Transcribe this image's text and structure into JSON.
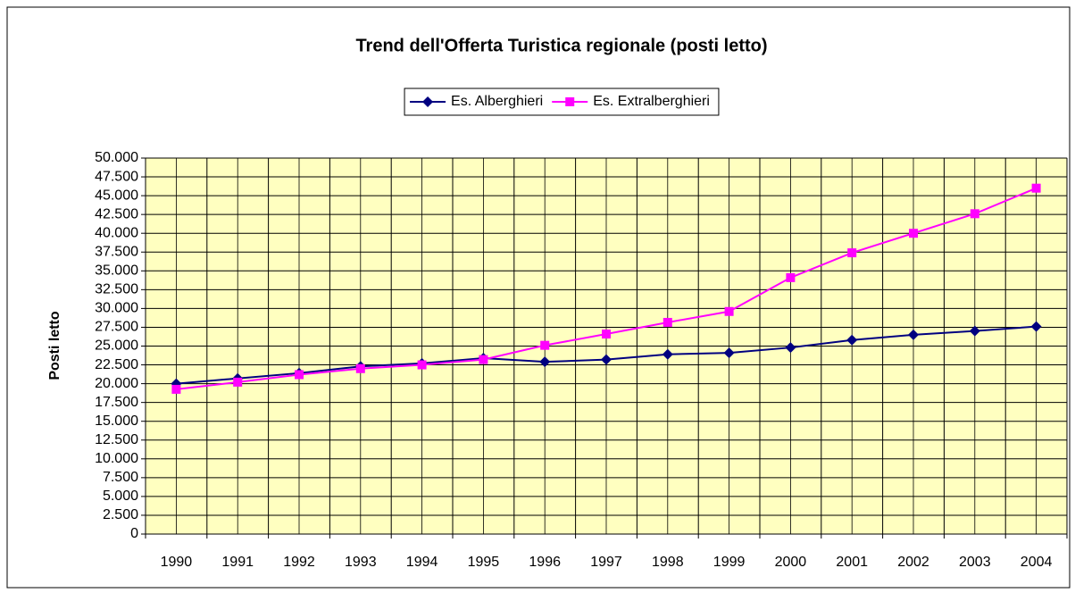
{
  "chart_data": {
    "type": "line",
    "title": "Trend dell'Offerta Turistica regionale (posti letto)",
    "y_label": "Posti letto",
    "categories": [
      "1990",
      "1991",
      "1992",
      "1993",
      "1994",
      "1995",
      "1996",
      "1997",
      "1998",
      "1999",
      "2000",
      "2001",
      "2002",
      "2003",
      "2004"
    ],
    "series": [
      {
        "name": "Es. Alberghieri",
        "color": "#000080",
        "marker": "diamond",
        "values": [
          20000,
          20700,
          21400,
          22300,
          22700,
          23400,
          22900,
          23200,
          23900,
          24100,
          24800,
          25800,
          26500,
          27000,
          27600
        ]
      },
      {
        "name": "Es. Extralberghieri",
        "color": "#ff00ff",
        "marker": "square",
        "values": [
          19250,
          20200,
          21200,
          22000,
          22500,
          23200,
          25100,
          26600,
          28150,
          29600,
          34100,
          37400,
          40000,
          42600,
          46000
        ]
      }
    ],
    "ylim": [
      0,
      50000
    ],
    "yticks": [
      0,
      {
        "value": 2500,
        "label": "2.500"
      },
      {
        "value": 5000,
        "label": "5.000"
      },
      {
        "value": 7500,
        "label": "7.500"
      },
      {
        "value": 10000,
        "label": "10.000"
      },
      {
        "value": 12500,
        "label": "12.500"
      },
      {
        "value": 15000,
        "label": "15.000"
      },
      {
        "value": 17500,
        "label": "17.500"
      },
      {
        "value": 20000,
        "label": "20.000"
      },
      {
        "value": 22500,
        "label": "22.500"
      },
      {
        "value": 25000,
        "label": "25.000"
      },
      {
        "value": 27500,
        "label": "27.500"
      },
      {
        "value": 30000,
        "label": "30.000"
      },
      {
        "value": 32500,
        "label": "32.500"
      },
      {
        "value": 35000,
        "label": "35.000"
      },
      {
        "value": 37500,
        "label": "37.500"
      },
      {
        "value": 40000,
        "label": "40.000"
      },
      {
        "value": 42500,
        "label": "42.500"
      },
      {
        "value": 45000,
        "label": "45.000"
      },
      {
        "value": 47500,
        "label": "47.500"
      },
      {
        "value": 50000,
        "label": "50.000"
      }
    ],
    "grid": true,
    "plot_background": "#ffffc0",
    "legend": "top"
  }
}
